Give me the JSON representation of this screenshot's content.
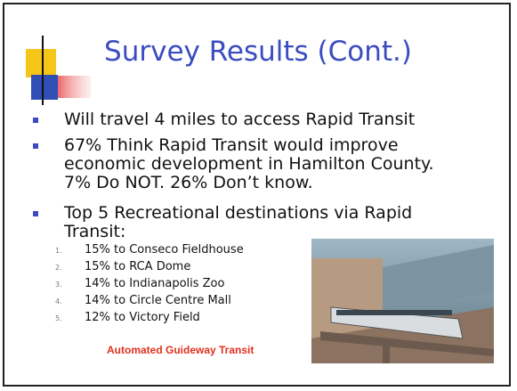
{
  "slide": {
    "title": "Survey Results (Cont.)",
    "bullets": [
      {
        "lines": [
          "Will travel 4 miles to access Rapid Transit"
        ]
      },
      {
        "lines": [
          "67% Think Rapid Transit would improve",
          "economic development in Hamilton County.",
          "7% Do NOT.  26% Don’t know."
        ]
      },
      {
        "lines": [
          "Top 5 Recreational destinations via Rapid",
          "Transit:"
        ]
      }
    ],
    "destinations": [
      {
        "number": "1.",
        "text": "15% to Conseco Fieldhouse"
      },
      {
        "number": "2.",
        "text": "15% to RCA Dome"
      },
      {
        "number": "3.",
        "text": "14% to Indianapolis Zoo"
      },
      {
        "number": "4.",
        "text": "14% to Circle Centre Mall"
      },
      {
        "number": "5.",
        "text": "12% to Victory Field"
      }
    ],
    "caption": "Automated Guideway Transit"
  }
}
